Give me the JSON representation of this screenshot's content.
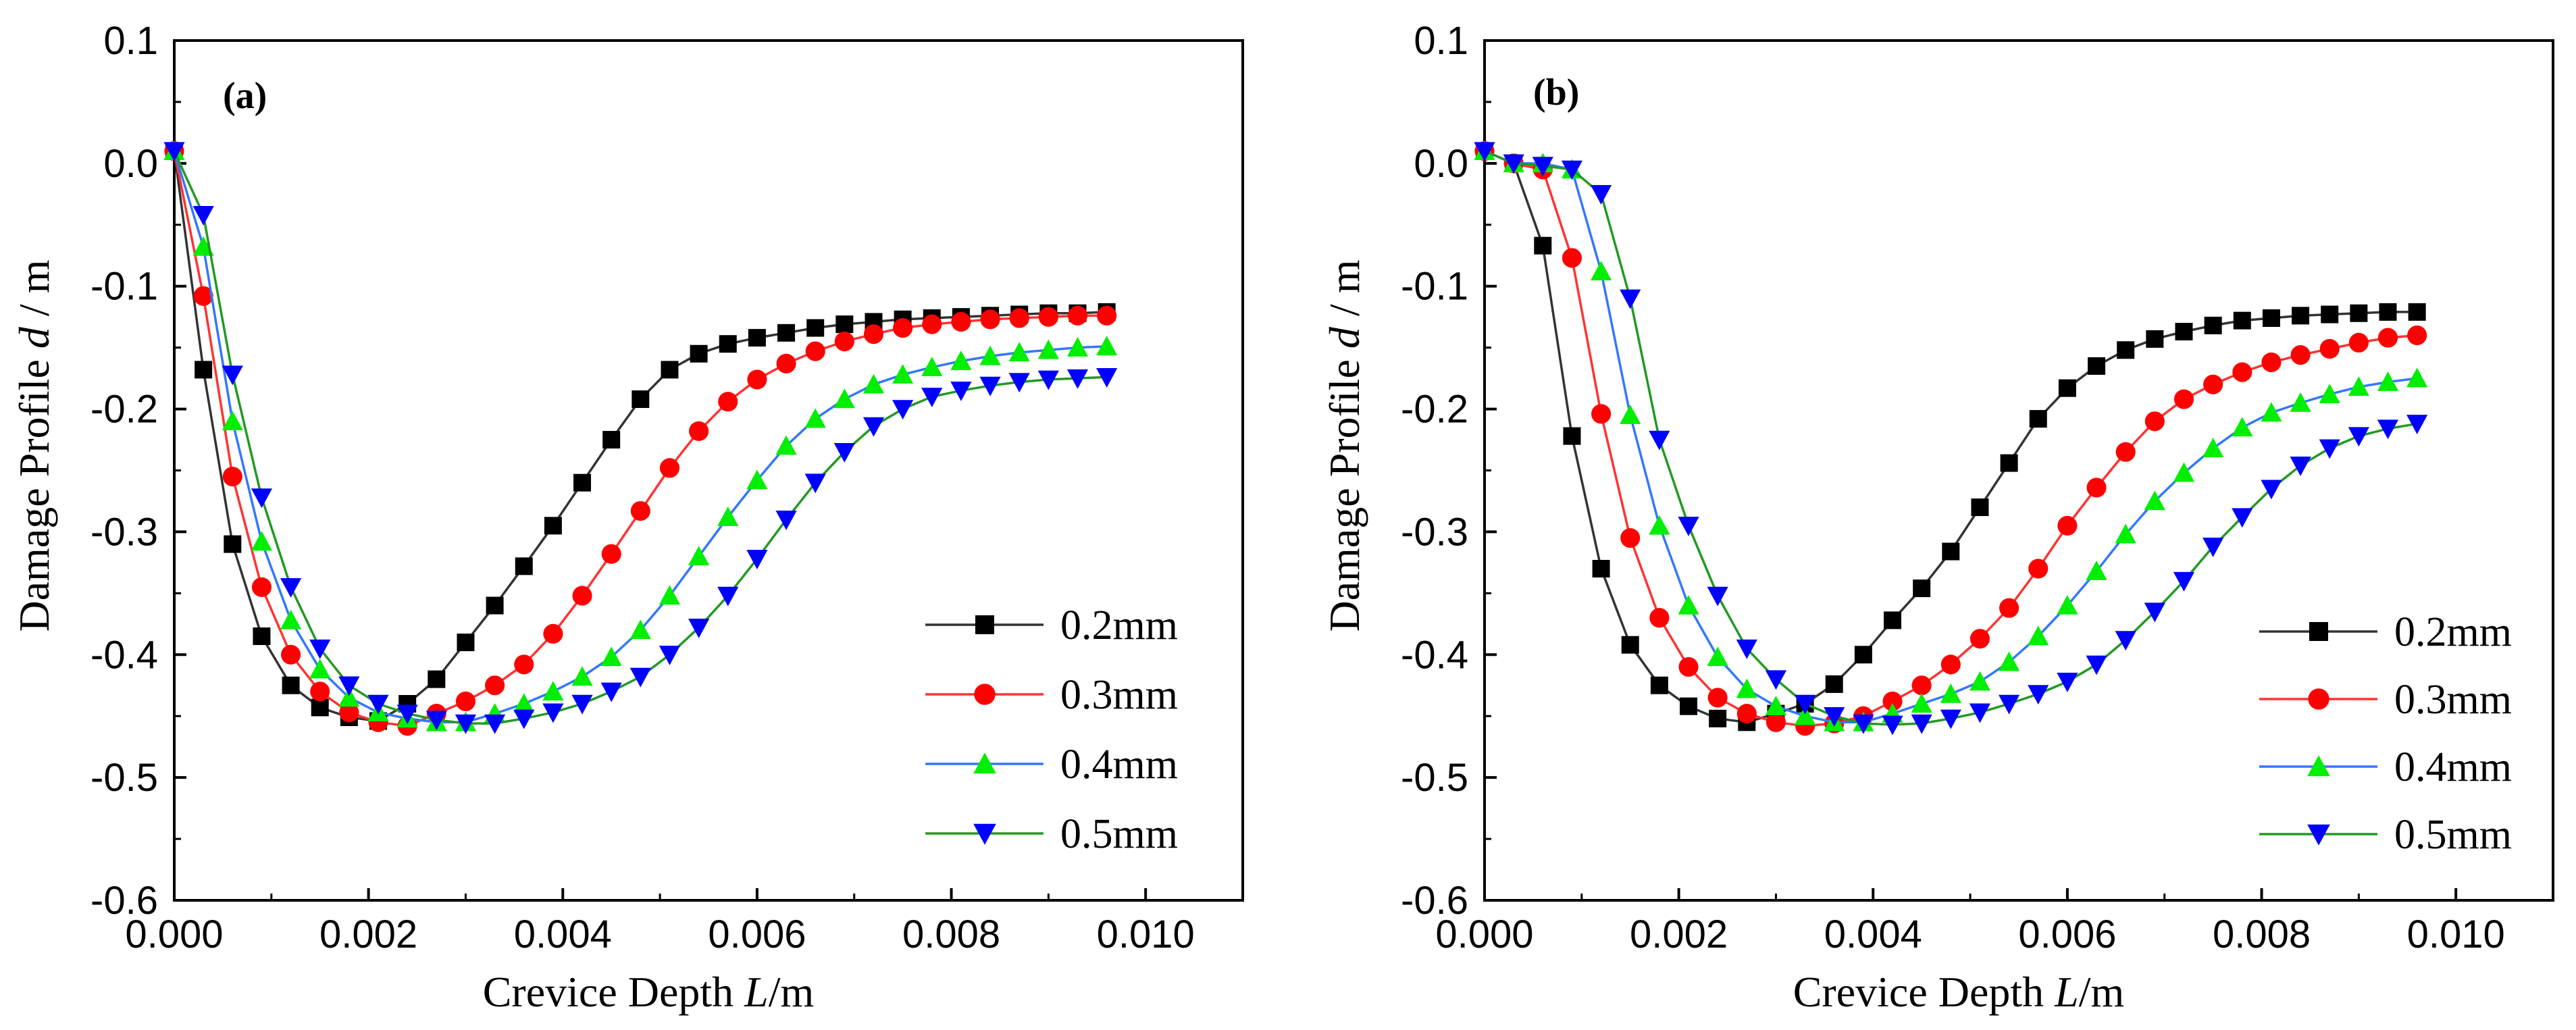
{
  "chart_data": [
    {
      "type": "line",
      "panel_label": "(a)",
      "xlabel": {
        "main": "Crevice Depth",
        "var": "L",
        "unit": "/m"
      },
      "ylabel": {
        "main": "Damage Profile",
        "var": "d",
        "unit": " / m"
      },
      "xlim": [
        0,
        0.011
      ],
      "ylim": [
        -0.6,
        0.1
      ],
      "xticks": [
        0,
        0.002,
        0.004,
        0.006,
        0.008,
        0.01
      ],
      "xtick_labels": [
        "0.000",
        "0.002",
        "0.004",
        "0.006",
        "0.008",
        "0.010"
      ],
      "yticks": [
        0.1,
        0,
        -0.1,
        -0.2,
        -0.3,
        -0.4,
        -0.5,
        -0.6
      ],
      "ytick_labels": [
        "0.1",
        "0.0",
        "-0.1",
        "-0.2",
        "-0.3",
        "-0.4",
        "-0.5",
        "-0.6"
      ],
      "legend_position": "bottom-right",
      "series": [
        {
          "name": "0.2mm",
          "color": "#000000",
          "line_color": "#333333",
          "marker": "square",
          "x": [
            0.0,
            0.0003,
            0.0006,
            0.0009,
            0.0012,
            0.0015,
            0.0018,
            0.0021,
            0.0024,
            0.0027,
            0.003,
            0.0033,
            0.0036,
            0.0039,
            0.0042,
            0.0045,
            0.0048,
            0.0051,
            0.0054,
            0.0057,
            0.006,
            0.0063,
            0.0066,
            0.0069,
            0.0072,
            0.0075,
            0.0078,
            0.0081,
            0.0084,
            0.0087,
            0.009,
            0.0093,
            0.0096
          ],
          "y": [
            0.01,
            -0.168,
            -0.31,
            -0.385,
            -0.425,
            -0.443,
            -0.451,
            -0.454,
            -0.44,
            -0.42,
            -0.39,
            -0.36,
            -0.328,
            -0.295,
            -0.26,
            -0.225,
            -0.192,
            -0.168,
            -0.155,
            -0.147,
            -0.142,
            -0.138,
            -0.134,
            -0.131,
            -0.129,
            -0.127,
            -0.126,
            -0.125,
            -0.124,
            -0.123,
            -0.122,
            -0.122,
            -0.121
          ]
        },
        {
          "name": "0.3mm",
          "color": "#ff0000",
          "line_color": "#ff3333",
          "marker": "circle",
          "x": [
            0.0,
            0.0003,
            0.0006,
            0.0009,
            0.0012,
            0.0015,
            0.0018,
            0.0021,
            0.0024,
            0.0027,
            0.003,
            0.0033,
            0.0036,
            0.0039,
            0.0042,
            0.0045,
            0.0048,
            0.0051,
            0.0054,
            0.0057,
            0.006,
            0.0063,
            0.0066,
            0.0069,
            0.0072,
            0.0075,
            0.0078,
            0.0081,
            0.0084,
            0.0087,
            0.009,
            0.0093,
            0.0096
          ],
          "y": [
            0.01,
            -0.108,
            -0.255,
            -0.345,
            -0.4,
            -0.43,
            -0.447,
            -0.455,
            -0.458,
            -0.448,
            -0.438,
            -0.425,
            -0.408,
            -0.383,
            -0.352,
            -0.318,
            -0.283,
            -0.248,
            -0.218,
            -0.194,
            -0.176,
            -0.163,
            -0.153,
            -0.145,
            -0.139,
            -0.134,
            -0.131,
            -0.129,
            -0.127,
            -0.126,
            -0.125,
            -0.124,
            -0.124
          ]
        },
        {
          "name": "0.4mm",
          "color": "#00ee00",
          "line_color": "#3377ff",
          "marker": "triangle-up",
          "x": [
            0.0,
            0.0003,
            0.0006,
            0.0009,
            0.0012,
            0.0015,
            0.0018,
            0.0021,
            0.0024,
            0.0027,
            0.003,
            0.0033,
            0.0036,
            0.0039,
            0.0042,
            0.0045,
            0.0048,
            0.0051,
            0.0054,
            0.0057,
            0.006,
            0.0063,
            0.0066,
            0.0069,
            0.0072,
            0.0075,
            0.0078,
            0.0081,
            0.0084,
            0.0087,
            0.009,
            0.0093,
            0.0096
          ],
          "y": [
            0.01,
            -0.068,
            -0.21,
            -0.308,
            -0.372,
            -0.412,
            -0.435,
            -0.447,
            -0.452,
            -0.455,
            -0.455,
            -0.448,
            -0.44,
            -0.43,
            -0.418,
            -0.402,
            -0.38,
            -0.352,
            -0.32,
            -0.288,
            -0.258,
            -0.23,
            -0.208,
            -0.192,
            -0.18,
            -0.172,
            -0.166,
            -0.161,
            -0.157,
            -0.154,
            -0.152,
            -0.15,
            -0.149
          ]
        },
        {
          "name": "0.5mm",
          "color": "#0000ff",
          "line_color": "#229922",
          "marker": "triangle-down",
          "x": [
            0.0,
            0.0003,
            0.0006,
            0.0009,
            0.0012,
            0.0015,
            0.0018,
            0.0021,
            0.0024,
            0.0027,
            0.003,
            0.0033,
            0.0036,
            0.0039,
            0.0042,
            0.0045,
            0.0048,
            0.0051,
            0.0054,
            0.0057,
            0.006,
            0.0063,
            0.0066,
            0.0069,
            0.0072,
            0.0075,
            0.0078,
            0.0081,
            0.0084,
            0.0087,
            0.009,
            0.0093,
            0.0096
          ],
          "y": [
            0.01,
            -0.042,
            -0.172,
            -0.272,
            -0.345,
            -0.395,
            -0.425,
            -0.44,
            -0.448,
            -0.453,
            -0.456,
            -0.456,
            -0.452,
            -0.447,
            -0.44,
            -0.43,
            -0.418,
            -0.4,
            -0.378,
            -0.352,
            -0.322,
            -0.29,
            -0.26,
            -0.235,
            -0.214,
            -0.2,
            -0.19,
            -0.185,
            -0.181,
            -0.178,
            -0.176,
            -0.175,
            -0.174
          ]
        }
      ]
    },
    {
      "type": "line",
      "panel_label": "(b)",
      "xlabel": {
        "main": "Crevice Depth",
        "var": "L",
        "unit": "/m"
      },
      "ylabel": {
        "main": "Damage Profile",
        "var": "d",
        "unit": " / m"
      },
      "xlim": [
        0,
        0.011
      ],
      "ylim": [
        -0.6,
        0.1
      ],
      "xticks": [
        0,
        0.002,
        0.004,
        0.006,
        0.008,
        0.01
      ],
      "xtick_labels": [
        "0.000",
        "0.002",
        "0.004",
        "0.006",
        "0.008",
        "0.010"
      ],
      "yticks": [
        0.1,
        0,
        -0.1,
        -0.2,
        -0.3,
        -0.4,
        -0.5,
        -0.6
      ],
      "ytick_labels": [
        "0.1",
        "0.0",
        "-0.1",
        "-0.2",
        "-0.3",
        "-0.4",
        "-0.5",
        "-0.6"
      ],
      "legend_position": "bottom-right",
      "series": [
        {
          "name": "0.2mm",
          "color": "#000000",
          "line_color": "#333333",
          "marker": "square",
          "x": [
            0.0,
            0.0003,
            0.0006,
            0.0009,
            0.0012,
            0.0015,
            0.0018,
            0.0021,
            0.0024,
            0.0027,
            0.003,
            0.0033,
            0.0036,
            0.0039,
            0.0042,
            0.0045,
            0.0048,
            0.0051,
            0.0054,
            0.0057,
            0.006,
            0.0063,
            0.0066,
            0.0069,
            0.0072,
            0.0075,
            0.0078,
            0.0081,
            0.0084,
            0.0087,
            0.009,
            0.0093,
            0.0096
          ],
          "y": [
            0.01,
            0.0,
            -0.067,
            -0.222,
            -0.33,
            -0.392,
            -0.425,
            -0.442,
            -0.452,
            -0.455,
            -0.448,
            -0.44,
            -0.424,
            -0.4,
            -0.372,
            -0.346,
            -0.316,
            -0.28,
            -0.244,
            -0.208,
            -0.183,
            -0.165,
            -0.152,
            -0.143,
            -0.137,
            -0.132,
            -0.128,
            -0.126,
            -0.124,
            -0.123,
            -0.122,
            -0.121,
            -0.121
          ]
        },
        {
          "name": "0.3mm",
          "color": "#ff0000",
          "line_color": "#ff3333",
          "marker": "circle",
          "x": [
            0.0,
            0.0003,
            0.0006,
            0.0009,
            0.0012,
            0.0015,
            0.0018,
            0.0021,
            0.0024,
            0.0027,
            0.003,
            0.0033,
            0.0036,
            0.0039,
            0.0042,
            0.0045,
            0.0048,
            0.0051,
            0.0054,
            0.0057,
            0.006,
            0.0063,
            0.0066,
            0.0069,
            0.0072,
            0.0075,
            0.0078,
            0.0081,
            0.0084,
            0.0087,
            0.009,
            0.0093,
            0.0096
          ],
          "y": [
            0.01,
            0.0,
            -0.005,
            -0.077,
            -0.204,
            -0.305,
            -0.37,
            -0.41,
            -0.435,
            -0.448,
            -0.455,
            -0.458,
            -0.456,
            -0.45,
            -0.438,
            -0.425,
            -0.408,
            -0.387,
            -0.362,
            -0.33,
            -0.295,
            -0.264,
            -0.235,
            -0.21,
            -0.192,
            -0.18,
            -0.17,
            -0.162,
            -0.156,
            -0.151,
            -0.146,
            -0.142,
            -0.14
          ]
        },
        {
          "name": "0.4mm",
          "color": "#00ee00",
          "line_color": "#3377ff",
          "marker": "triangle-up",
          "x": [
            0.0,
            0.0003,
            0.0006,
            0.0009,
            0.0012,
            0.0015,
            0.0018,
            0.0021,
            0.0024,
            0.0027,
            0.003,
            0.0033,
            0.0036,
            0.0039,
            0.0042,
            0.0045,
            0.0048,
            0.0051,
            0.0054,
            0.0057,
            0.006,
            0.0063,
            0.0066,
            0.0069,
            0.0072,
            0.0075,
            0.0078,
            0.0081,
            0.0084,
            0.0087,
            0.009,
            0.0093,
            0.0096
          ],
          "y": [
            0.01,
            0.0,
            0.0,
            -0.005,
            -0.088,
            -0.205,
            -0.295,
            -0.36,
            -0.402,
            -0.428,
            -0.442,
            -0.45,
            -0.455,
            -0.455,
            -0.448,
            -0.44,
            -0.432,
            -0.422,
            -0.406,
            -0.385,
            -0.36,
            -0.332,
            -0.302,
            -0.275,
            -0.252,
            -0.232,
            -0.215,
            -0.203,
            -0.195,
            -0.188,
            -0.182,
            -0.178,
            -0.175
          ]
        },
        {
          "name": "0.5mm",
          "color": "#0000ff",
          "line_color": "#229922",
          "marker": "triangle-down",
          "x": [
            0.0,
            0.0003,
            0.0006,
            0.0009,
            0.0012,
            0.0015,
            0.0018,
            0.0021,
            0.0024,
            0.0027,
            0.003,
            0.0033,
            0.0036,
            0.0039,
            0.0042,
            0.0045,
            0.0048,
            0.0051,
            0.0054,
            0.0057,
            0.006,
            0.0063,
            0.0066,
            0.0069,
            0.0072,
            0.0075,
            0.0078,
            0.0081,
            0.0084,
            0.0087,
            0.009,
            0.0093,
            0.0096
          ],
          "y": [
            0.01,
            0.0,
            -0.002,
            -0.005,
            -0.025,
            -0.11,
            -0.225,
            -0.295,
            -0.352,
            -0.395,
            -0.42,
            -0.44,
            -0.45,
            -0.456,
            -0.457,
            -0.456,
            -0.452,
            -0.447,
            -0.44,
            -0.432,
            -0.422,
            -0.408,
            -0.388,
            -0.365,
            -0.34,
            -0.312,
            -0.288,
            -0.265,
            -0.246,
            -0.232,
            -0.222,
            -0.216,
            -0.212
          ]
        }
      ]
    }
  ]
}
